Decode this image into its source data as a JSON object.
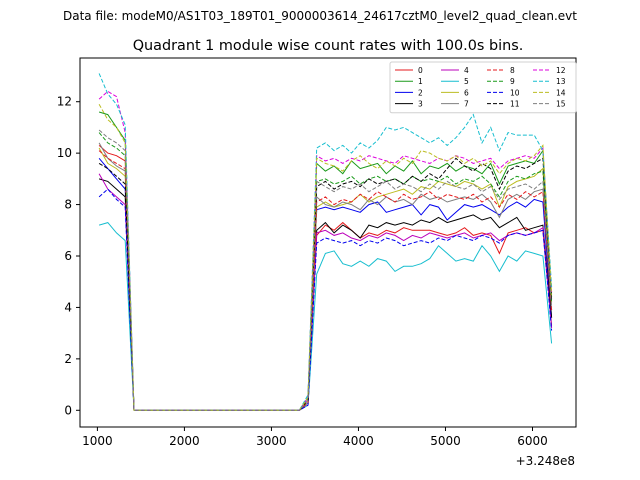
{
  "suptitle": "Data file: modeM0/AS1T03_189T01_9000003614_24617cztM0_level2_quad_clean.evt",
  "chart_data": {
    "type": "line",
    "title": "Quadrant 1 module wise count rates with 100.0s bins.",
    "xlabel": "",
    "ylabel": "",
    "x_offset_label": "+3.248e8",
    "xlim": [
      800,
      6500
    ],
    "ylim": [
      -0.65,
      13.7
    ],
    "xticks": [
      1000,
      2000,
      3000,
      4000,
      5000,
      6000
    ],
    "xtick_labels": [
      "1000",
      "2000",
      "3000",
      "4000",
      "5000",
      "6000"
    ],
    "yticks": [
      0,
      2,
      4,
      6,
      8,
      10,
      12
    ],
    "ytick_labels": [
      "0",
      "2",
      "4",
      "6",
      "8",
      "10",
      "12"
    ],
    "x": [
      1020,
      1120,
      1220,
      1320,
      1420,
      1520,
      1620,
      1720,
      1820,
      1920,
      2020,
      2120,
      2220,
      2320,
      2420,
      2520,
      2620,
      2720,
      2820,
      2920,
      3020,
      3120,
      3220,
      3320,
      3420,
      3520,
      3620,
      3720,
      3820,
      3920,
      4020,
      4120,
      4220,
      4320,
      4420,
      4520,
      4620,
      4720,
      4820,
      4920,
      5020,
      5120,
      5220,
      5320,
      5420,
      5520,
      5620,
      5720,
      5820,
      5920,
      6020,
      6120,
      6220
    ],
    "legend": {
      "location": "upper right",
      "columns": 4
    },
    "series": [
      {
        "name": "0",
        "color": "#e41a1c",
        "style": "solid",
        "values": [
          10.3,
          10.0,
          9.9,
          9.7,
          0,
          0,
          0,
          0,
          0,
          0,
          0,
          0,
          0,
          0,
          0,
          0,
          0,
          0,
          0,
          0,
          0,
          0,
          0,
          0,
          0.2,
          6.8,
          7.2,
          7.0,
          7.3,
          7.0,
          6.7,
          6.9,
          6.8,
          7.0,
          6.9,
          7.1,
          7.0,
          7.0,
          7.0,
          6.9,
          6.8,
          6.9,
          7.1,
          6.8,
          6.9,
          6.8,
          6.1,
          6.9,
          7.0,
          7.1,
          6.9,
          7.0,
          3.3
        ]
      },
      {
        "name": "1",
        "color": "#1a9a1a",
        "style": "solid",
        "values": [
          11.6,
          11.5,
          11.0,
          10.5,
          0,
          0,
          0,
          0,
          0,
          0,
          0,
          0,
          0,
          0,
          0,
          0,
          0,
          0,
          0,
          0,
          0,
          0,
          0,
          0,
          0.5,
          9.6,
          9.3,
          9.5,
          9.2,
          9.7,
          9.4,
          9.5,
          9.6,
          9.2,
          9.5,
          9.3,
          9.7,
          9.2,
          9.5,
          9.4,
          9.6,
          9.3,
          9.5,
          9.4,
          9.2,
          9.6,
          8.8,
          9.5,
          9.6,
          9.7,
          9.6,
          10.1,
          4.4
        ]
      },
      {
        "name": "2",
        "color": "#0000ee",
        "style": "solid",
        "values": [
          9.8,
          9.4,
          9.0,
          8.6,
          0,
          0,
          0,
          0,
          0,
          0,
          0,
          0,
          0,
          0,
          0,
          0,
          0,
          0,
          0,
          0,
          0,
          0,
          0,
          0,
          0.3,
          7.8,
          7.9,
          7.8,
          7.9,
          7.8,
          7.7,
          8.0,
          8.1,
          7.7,
          7.8,
          7.9,
          8.0,
          7.6,
          8.0,
          7.9,
          7.4,
          7.7,
          8.0,
          7.9,
          8.0,
          7.8,
          7.6,
          7.9,
          8.1,
          7.9,
          8.2,
          8.1,
          3.6
        ]
      },
      {
        "name": "3",
        "color": "#000000",
        "style": "solid",
        "values": [
          9.0,
          8.9,
          8.6,
          8.3,
          0,
          0,
          0,
          0,
          0,
          0,
          0,
          0,
          0,
          0,
          0,
          0,
          0,
          0,
          0,
          0,
          0,
          0,
          0,
          0,
          0.3,
          7.0,
          7.3,
          6.9,
          7.2,
          7.0,
          6.7,
          7.2,
          7.1,
          7.3,
          7.2,
          7.3,
          7.2,
          7.4,
          7.3,
          7.5,
          7.3,
          7.4,
          7.5,
          7.6,
          7.4,
          7.5,
          7.1,
          7.3,
          7.5,
          7.0,
          7.1,
          7.2,
          3.6
        ]
      },
      {
        "name": "4",
        "color": "#bb00bb",
        "style": "solid",
        "values": [
          9.2,
          8.6,
          8.3,
          8.0,
          0,
          0,
          0,
          0,
          0,
          0,
          0,
          0,
          0,
          0,
          0,
          0,
          0,
          0,
          0,
          0,
          0,
          0,
          0,
          0,
          0.2,
          6.9,
          7.0,
          6.8,
          6.9,
          6.7,
          6.6,
          6.8,
          6.7,
          6.9,
          6.8,
          6.6,
          6.8,
          6.7,
          6.9,
          6.8,
          6.7,
          6.8,
          6.9,
          6.7,
          6.8,
          6.9,
          6.6,
          6.8,
          6.9,
          6.8,
          6.9,
          7.1,
          3.2
        ]
      },
      {
        "name": "5",
        "color": "#17becf",
        "style": "solid",
        "values": [
          7.2,
          7.3,
          6.9,
          6.6,
          0,
          0,
          0,
          0,
          0,
          0,
          0,
          0,
          0,
          0,
          0,
          0,
          0,
          0,
          0,
          0,
          0,
          0,
          0,
          0,
          0.2,
          5.3,
          6.1,
          6.2,
          5.7,
          5.6,
          5.8,
          5.6,
          5.9,
          5.8,
          5.4,
          5.6,
          5.6,
          5.7,
          5.9,
          6.4,
          6.1,
          5.8,
          5.9,
          5.8,
          6.4,
          6.0,
          5.4,
          6.0,
          5.8,
          6.2,
          6.1,
          6.0,
          2.6
        ]
      },
      {
        "name": "6",
        "color": "#bcbd22",
        "style": "solid",
        "values": [
          10.2,
          9.6,
          9.4,
          9.1,
          0,
          0,
          0,
          0,
          0,
          0,
          0,
          0,
          0,
          0,
          0,
          0,
          0,
          0,
          0,
          0,
          0,
          0,
          0,
          0,
          0.3,
          7.9,
          8.1,
          7.9,
          8.0,
          8.1,
          8.4,
          8.1,
          8.3,
          8.4,
          8.5,
          8.6,
          8.4,
          8.7,
          8.6,
          8.9,
          8.8,
          8.7,
          8.9,
          8.8,
          8.6,
          8.8,
          7.9,
          8.7,
          8.9,
          9.0,
          9.1,
          9.4,
          4.2
        ]
      },
      {
        "name": "7",
        "color": "#7f7f7f",
        "style": "solid",
        "values": [
          10.4,
          9.8,
          9.5,
          9.3,
          0,
          0,
          0,
          0,
          0,
          0,
          0,
          0,
          0,
          0,
          0,
          0,
          0,
          0,
          0,
          0,
          0,
          0,
          0,
          0,
          0.3,
          8.3,
          8.0,
          7.9,
          8.1,
          8.0,
          7.8,
          8.2,
          8.0,
          8.3,
          8.1,
          8.2,
          8.0,
          8.4,
          8.2,
          8.3,
          8.1,
          8.2,
          8.3,
          8.2,
          8.4,
          8.1,
          7.5,
          8.2,
          8.4,
          8.2,
          8.5,
          8.6,
          3.9
        ]
      },
      {
        "name": "8",
        "color": "#e41a1c",
        "style": "dashed",
        "values": [
          10.1,
          9.8,
          9.6,
          9.4,
          0,
          0,
          0,
          0,
          0,
          0,
          0,
          0,
          0,
          0,
          0,
          0,
          0,
          0,
          0,
          0,
          0,
          0,
          0,
          0,
          0.3,
          8.1,
          8.3,
          8.0,
          8.2,
          8.1,
          8.4,
          8.2,
          8.5,
          8.3,
          8.1,
          8.4,
          8.2,
          8.3,
          8.5,
          8.2,
          8.4,
          8.3,
          8.2,
          8.4,
          8.1,
          8.3,
          7.9,
          8.4,
          8.2,
          8.5,
          8.3,
          8.5,
          3.9
        ]
      },
      {
        "name": "9",
        "color": "#1a9a1a",
        "style": "dashed",
        "values": [
          10.8,
          10.4,
          10.2,
          9.9,
          0,
          0,
          0,
          0,
          0,
          0,
          0,
          0,
          0,
          0,
          0,
          0,
          0,
          0,
          0,
          0,
          0,
          0,
          0,
          0,
          0.4,
          8.9,
          9.0,
          8.8,
          8.9,
          9.1,
          8.8,
          9.0,
          9.1,
          8.9,
          9.0,
          8.8,
          9.1,
          8.9,
          9.0,
          8.9,
          9.1,
          8.8,
          9.0,
          8.9,
          9.1,
          8.8,
          8.3,
          8.9,
          9.1,
          9.0,
          9.2,
          9.3,
          4.2
        ]
      },
      {
        "name": "10",
        "color": "#0000ee",
        "style": "dashed",
        "values": [
          8.3,
          8.6,
          8.2,
          7.9,
          0,
          0,
          0,
          0,
          0,
          0,
          0,
          0,
          0,
          0,
          0,
          0,
          0,
          0,
          0,
          0,
          0,
          0,
          0,
          0,
          0.2,
          6.5,
          6.7,
          6.6,
          6.5,
          6.6,
          6.4,
          6.6,
          6.5,
          6.7,
          6.6,
          6.4,
          6.5,
          6.6,
          6.5,
          6.7,
          6.6,
          6.8,
          6.7,
          6.6,
          6.8,
          6.7,
          6.5,
          6.8,
          6.9,
          6.8,
          6.9,
          7.0,
          3.1
        ]
      },
      {
        "name": "11",
        "color": "#000000",
        "style": "dashed",
        "values": [
          9.6,
          9.4,
          9.1,
          8.8,
          0,
          0,
          0,
          0,
          0,
          0,
          0,
          0,
          0,
          0,
          0,
          0,
          0,
          0,
          0,
          0,
          0,
          0,
          0,
          0,
          0.4,
          8.7,
          8.9,
          8.6,
          8.8,
          8.9,
          8.7,
          9.0,
          8.8,
          8.9,
          9.0,
          8.8,
          9.1,
          8.9,
          9.2,
          9.0,
          9.4,
          9.8,
          9.5,
          9.3,
          9.6,
          9.4,
          8.6,
          9.3,
          9.5,
          9.4,
          9.6,
          9.8,
          4.3
        ]
      },
      {
        "name": "12",
        "color": "#dd00dd",
        "style": "dashed",
        "values": [
          12.1,
          12.4,
          12.2,
          10.8,
          0,
          0,
          0,
          0,
          0,
          0,
          0,
          0,
          0,
          0,
          0,
          0,
          0,
          0,
          0,
          0,
          0,
          0,
          0,
          0,
          0.5,
          9.9,
          9.7,
          9.8,
          9.6,
          9.8,
          9.7,
          9.9,
          9.8,
          9.7,
          9.6,
          9.9,
          9.8,
          9.7,
          9.6,
          9.8,
          9.7,
          9.9,
          9.8,
          9.6,
          9.7,
          9.8,
          9.4,
          9.7,
          9.8,
          9.9,
          9.8,
          10.2,
          4.6
        ]
      },
      {
        "name": "13",
        "color": "#17becf",
        "style": "dashed",
        "values": [
          13.1,
          12.3,
          11.9,
          11.1,
          0,
          0,
          0,
          0,
          0,
          0,
          0,
          0,
          0,
          0,
          0,
          0,
          0,
          0,
          0,
          0,
          0,
          0,
          0,
          0,
          0.6,
          10.2,
          10.4,
          10.1,
          10.3,
          10.0,
          10.4,
          10.2,
          10.5,
          11.0,
          10.9,
          11.0,
          10.8,
          10.6,
          10.4,
          10.6,
          10.3,
          10.6,
          11.0,
          11.5,
          10.4,
          11.0,
          10.1,
          10.8,
          10.7,
          10.7,
          10.7,
          10.1,
          4.8
        ]
      },
      {
        "name": "14",
        "color": "#bcbd22",
        "style": "dashed",
        "values": [
          11.9,
          11.3,
          11.0,
          10.4,
          0,
          0,
          0,
          0,
          0,
          0,
          0,
          0,
          0,
          0,
          0,
          0,
          0,
          0,
          0,
          0,
          0,
          0,
          0,
          0,
          0.5,
          9.8,
          9.6,
          9.5,
          9.3,
          9.7,
          9.9,
          9.6,
          9.4,
          9.7,
          9.5,
          9.8,
          9.6,
          10.1,
          10.0,
          9.8,
          9.7,
          9.9,
          9.6,
          9.8,
          9.5,
          9.7,
          9.2,
          9.6,
          9.8,
          9.7,
          9.9,
          10.3,
          4.5
        ]
      },
      {
        "name": "15",
        "color": "#7f7f7f",
        "style": "dashed",
        "values": [
          10.9,
          10.6,
          10.4,
          10.1,
          0,
          0,
          0,
          0,
          0,
          0,
          0,
          0,
          0,
          0,
          0,
          0,
          0,
          0,
          0,
          0,
          0,
          0,
          0,
          0,
          0.4,
          8.9,
          8.7,
          8.5,
          8.7,
          8.6,
          8.8,
          8.5,
          8.7,
          8.9,
          8.6,
          8.8,
          8.7,
          8.5,
          8.8,
          8.6,
          8.9,
          8.7,
          8.6,
          8.8,
          8.5,
          8.7,
          8.2,
          8.6,
          8.7,
          8.8,
          8.6,
          8.9,
          4.0
        ]
      }
    ]
  }
}
